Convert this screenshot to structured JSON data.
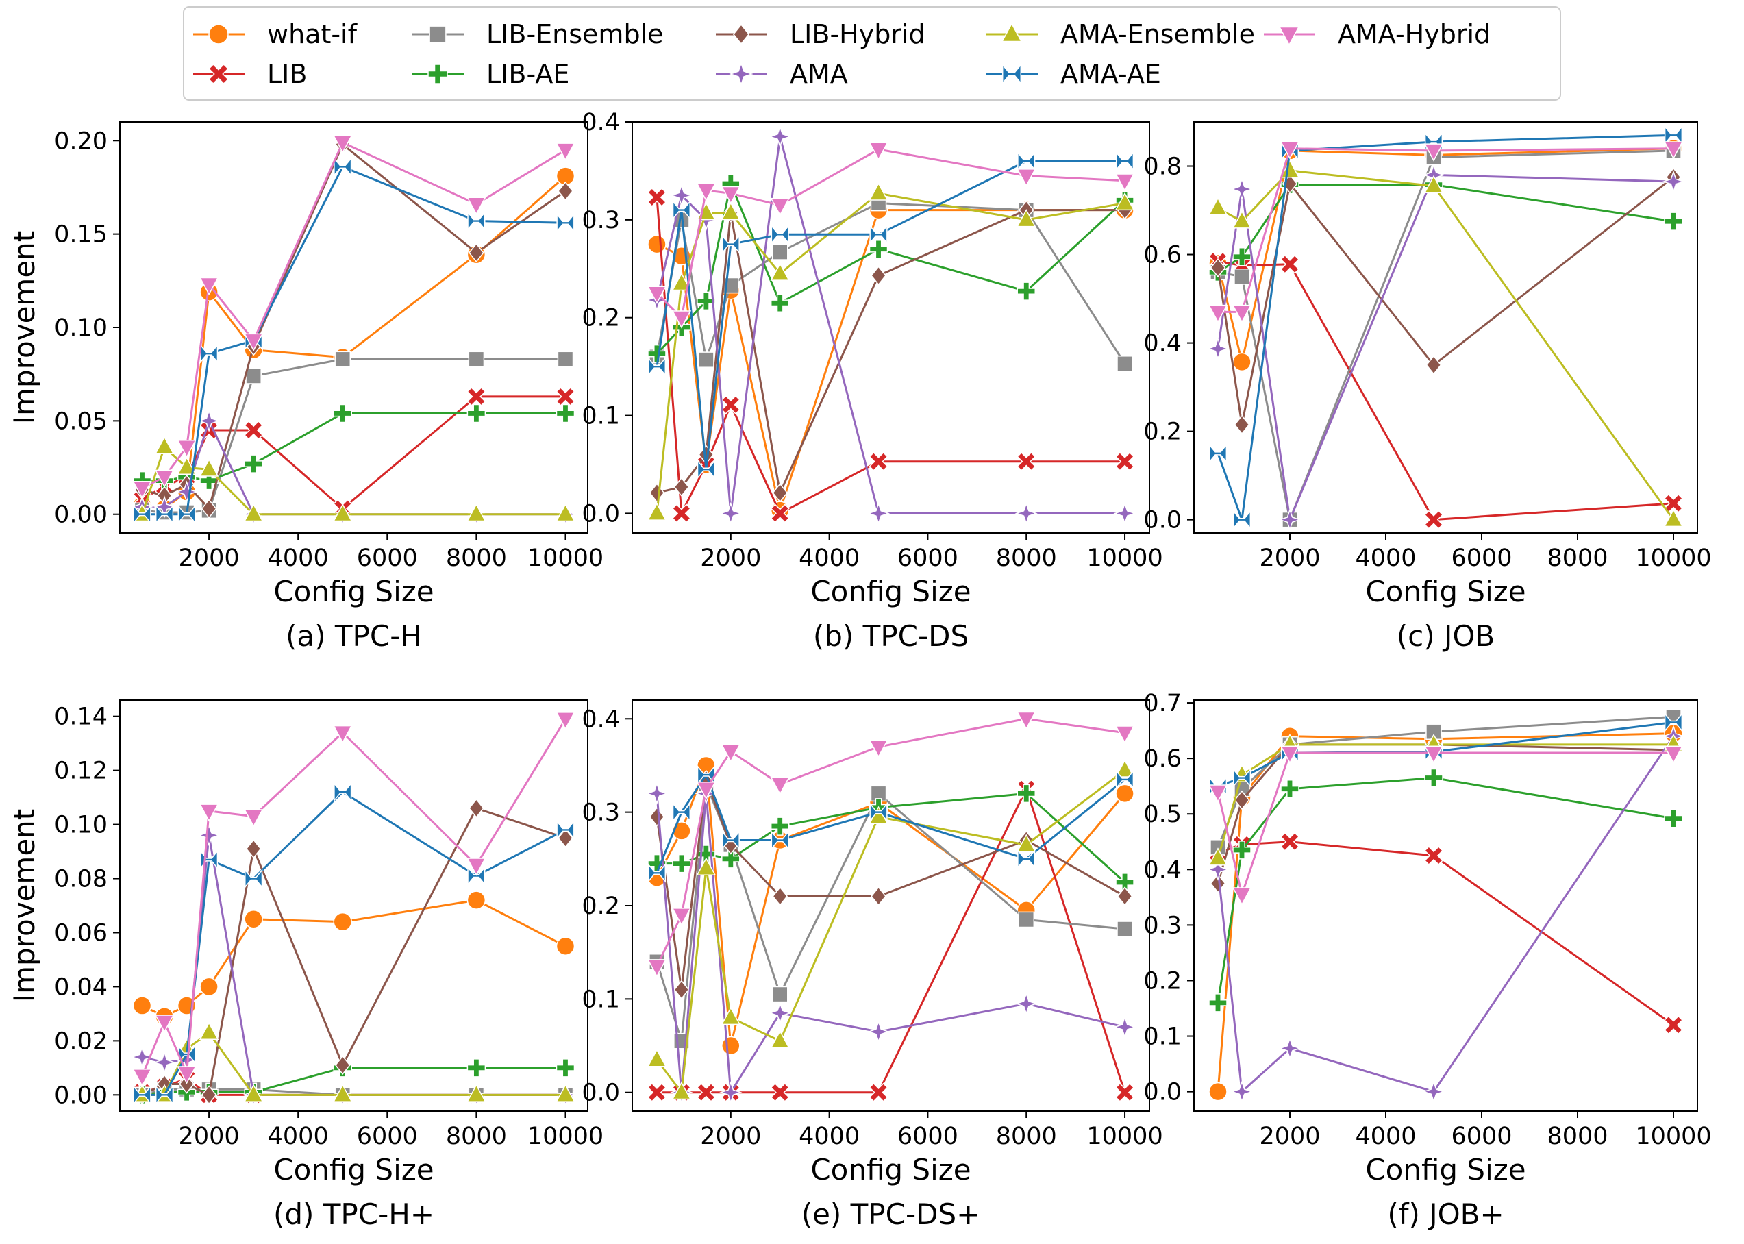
{
  "figure": {
    "ylabel": "Improvement",
    "xlabel": "Config Size"
  },
  "legend": {
    "entries": [
      {
        "name": "what-if",
        "color": "#ff7f0e",
        "marker": "circle"
      },
      {
        "name": "LIB",
        "color": "#d62728",
        "marker": "x"
      },
      {
        "name": "LIB-Ensemble",
        "color": "#8c8c8c",
        "marker": "square"
      },
      {
        "name": "LIB-AE",
        "color": "#2ca02c",
        "marker": "plus"
      },
      {
        "name": "LIB-Hybrid",
        "color": "#8c564b",
        "marker": "diamond"
      },
      {
        "name": "AMA",
        "color": "#9467bd",
        "marker": "star4"
      },
      {
        "name": "AMA-Ensemble",
        "color": "#bcbd22",
        "marker": "triangle-up"
      },
      {
        "name": "AMA-AE",
        "color": "#1f77b4",
        "marker": "bowtie"
      },
      {
        "name": "AMA-Hybrid",
        "color": "#e377c2",
        "marker": "triangle-down"
      }
    ]
  },
  "chart_data": [
    {
      "type": "line",
      "caption": "(a) TPC-H",
      "xlabel": "Config Size",
      "ylabel": "Improvement",
      "xlim": [
        0,
        10500
      ],
      "ylim": [
        -0.01,
        0.21
      ],
      "xticks": [
        2000,
        4000,
        6000,
        8000,
        10000
      ],
      "xtick_labels": [
        "2000",
        "4000",
        "6000",
        "8000",
        "10000"
      ],
      "yticks": [
        0,
        0.05,
        0.1,
        0.15,
        0.2
      ],
      "ytick_labels": [
        "0.00",
        "0.05",
        "0.10",
        "0.15",
        "0.20"
      ],
      "x": [
        500,
        1000,
        1500,
        2000,
        3000,
        5000,
        8000,
        10000
      ],
      "series": [
        {
          "name": "what-if",
          "values": [
            0.005,
            0.003,
            0.012,
            0.119,
            0.088,
            0.084,
            0.139,
            0.181
          ]
        },
        {
          "name": "LIB",
          "values": [
            0.008,
            0.015,
            0.02,
            0.045,
            0.045,
            0.003,
            0.063,
            0.063
          ]
        },
        {
          "name": "LIB-Ensemble",
          "values": [
            0.002,
            0.001,
            0.001,
            0.002,
            0.074,
            0.083,
            0.083,
            0.083
          ]
        },
        {
          "name": "LIB-AE",
          "values": [
            0.018,
            0.018,
            0.02,
            0.018,
            0.027,
            0.054,
            0.054,
            0.054
          ]
        },
        {
          "name": "LIB-Hybrid",
          "values": [
            0.013,
            0.01,
            0.016,
            0.003,
            0.09,
            0.198,
            0.14,
            0.173
          ]
        },
        {
          "name": "AMA",
          "values": [
            0.004,
            0.004,
            0.012,
            0.05,
            0.0,
            0.0,
            0.0,
            0.0
          ]
        },
        {
          "name": "AMA-Ensemble",
          "values": [
            0.0,
            0.036,
            0.025,
            0.024,
            0.0,
            0.0,
            0.0,
            0.0
          ]
        },
        {
          "name": "AMA-AE",
          "values": [
            0.0,
            0.0,
            0.0,
            0.086,
            0.093,
            0.186,
            0.157,
            0.156
          ]
        },
        {
          "name": "AMA-Hybrid",
          "values": [
            0.014,
            0.02,
            0.036,
            0.123,
            0.093,
            0.199,
            0.166,
            0.195
          ]
        }
      ]
    },
    {
      "type": "line",
      "caption": "(b) TPC-DS",
      "xlabel": "Config Size",
      "ylabel": "",
      "xlim": [
        0,
        10500
      ],
      "ylim": [
        -0.02,
        0.4
      ],
      "xticks": [
        2000,
        4000,
        6000,
        8000,
        10000
      ],
      "xtick_labels": [
        "2000",
        "4000",
        "6000",
        "8000",
        "10000"
      ],
      "yticks": [
        0,
        0.1,
        0.2,
        0.3,
        0.4
      ],
      "ytick_labels": [
        "0.0",
        "0.1",
        "0.2",
        "0.3",
        "0.4"
      ],
      "x": [
        500,
        1000,
        1500,
        2000,
        3000,
        5000,
        8000,
        10000
      ],
      "series": [
        {
          "name": "what-if",
          "values": [
            0.275,
            0.263,
            0.05,
            0.228,
            0.003,
            0.31,
            0.31,
            0.31
          ]
        },
        {
          "name": "LIB",
          "values": [
            0.323,
            0.0,
            0.05,
            0.111,
            0.0,
            0.053,
            0.053,
            0.053
          ]
        },
        {
          "name": "LIB-Ensemble",
          "values": [
            0.16,
            0.3,
            0.157,
            0.233,
            0.267,
            0.317,
            0.31,
            0.153
          ]
        },
        {
          "name": "LIB-AE",
          "values": [
            0.163,
            0.19,
            0.217,
            0.337,
            0.215,
            0.27,
            0.227,
            0.32
          ]
        },
        {
          "name": "LIB-Hybrid",
          "values": [
            0.021,
            0.027,
            0.06,
            0.307,
            0.021,
            0.243,
            0.31,
            0.31
          ]
        },
        {
          "name": "AMA",
          "values": [
            0.218,
            0.325,
            0.3,
            0.0,
            0.385,
            0.0,
            0.0,
            0.0
          ]
        },
        {
          "name": "AMA-Ensemble",
          "values": [
            0.0,
            0.235,
            0.307,
            0.307,
            0.245,
            0.327,
            0.3,
            0.317
          ]
        },
        {
          "name": "AMA-AE",
          "values": [
            0.15,
            0.31,
            0.045,
            0.275,
            0.285,
            0.285,
            0.36,
            0.36
          ]
        },
        {
          "name": "AMA-Hybrid",
          "values": [
            0.225,
            0.2,
            0.33,
            0.327,
            0.315,
            0.372,
            0.345,
            0.34
          ]
        }
      ]
    },
    {
      "type": "line",
      "caption": "(c) JOB",
      "xlabel": "Config Size",
      "ylabel": "",
      "xlim": [
        0,
        10500
      ],
      "ylim": [
        -0.03,
        0.9
      ],
      "xticks": [
        2000,
        4000,
        6000,
        8000,
        10000
      ],
      "xtick_labels": [
        "2000",
        "4000",
        "6000",
        "8000",
        "10000"
      ],
      "yticks": [
        0,
        0.2,
        0.4,
        0.6,
        0.8
      ],
      "ytick_labels": [
        "0.0",
        "0.2",
        "0.4",
        "0.6",
        "0.8"
      ],
      "x": [
        500,
        1000,
        2000,
        5000,
        10000
      ],
      "series": [
        {
          "name": "what-if",
          "values": [
            0.58,
            0.357,
            0.835,
            0.825,
            0.84
          ]
        },
        {
          "name": "LIB",
          "values": [
            0.585,
            0.575,
            0.578,
            0.0,
            0.037
          ]
        },
        {
          "name": "LIB-Ensemble",
          "values": [
            0.56,
            0.55,
            0.0,
            0.82,
            0.835
          ]
        },
        {
          "name": "LIB-AE",
          "values": [
            0.56,
            0.595,
            0.758,
            0.758,
            0.675
          ]
        },
        {
          "name": "LIB-Hybrid",
          "values": [
            0.57,
            0.215,
            0.76,
            0.35,
            0.775
          ]
        },
        {
          "name": "AMA",
          "values": [
            0.387,
            0.748,
            0.0,
            0.78,
            0.765
          ]
        },
        {
          "name": "AMA-Ensemble",
          "values": [
            0.705,
            0.675,
            0.79,
            0.755,
            0.0
          ]
        },
        {
          "name": "AMA-AE",
          "values": [
            0.15,
            0.0,
            0.835,
            0.855,
            0.87
          ]
        },
        {
          "name": "AMA-Hybrid",
          "values": [
            0.47,
            0.47,
            0.84,
            0.835,
            0.84
          ]
        }
      ]
    },
    {
      "type": "line",
      "caption": "(d) TPC-H+",
      "xlabel": "Config Size",
      "ylabel": "Improvement",
      "xlim": [
        0,
        10500
      ],
      "ylim": [
        -0.006,
        0.146
      ],
      "xticks": [
        2000,
        4000,
        6000,
        8000,
        10000
      ],
      "xtick_labels": [
        "2000",
        "4000",
        "6000",
        "8000",
        "10000"
      ],
      "yticks": [
        0,
        0.02,
        0.04,
        0.06,
        0.08,
        0.1,
        0.12,
        0.14
      ],
      "ytick_labels": [
        "0.00",
        "0.02",
        "0.04",
        "0.06",
        "0.08",
        "0.10",
        "0.12",
        "0.14"
      ],
      "x": [
        500,
        1000,
        1500,
        2000,
        3000,
        5000,
        8000,
        10000
      ],
      "series": [
        {
          "name": "what-if",
          "values": [
            0.033,
            0.029,
            0.033,
            0.04,
            0.065,
            0.064,
            0.072,
            0.055
          ]
        },
        {
          "name": "LIB",
          "values": [
            0.001,
            0.003,
            0.006,
            0.0,
            0.0,
            0.0,
            0.0,
            0.0
          ]
        },
        {
          "name": "LIB-Ensemble",
          "values": [
            0.0,
            0.002,
            0.002,
            0.002,
            0.002,
            0.0,
            0.0,
            0.0
          ]
        },
        {
          "name": "LIB-AE",
          "values": [
            0.0,
            0.001,
            0.001,
            0.001,
            0.001,
            0.01,
            0.01,
            0.01
          ]
        },
        {
          "name": "LIB-Hybrid",
          "values": [
            0.0,
            0.004,
            0.004,
            0.0,
            0.091,
            0.011,
            0.106,
            0.095
          ]
        },
        {
          "name": "AMA",
          "values": [
            0.014,
            0.012,
            0.013,
            0.096,
            0.0,
            0.0,
            0.0,
            0.0
          ]
        },
        {
          "name": "AMA-Ensemble",
          "values": [
            0.0,
            0.0,
            0.017,
            0.023,
            0.0,
            0.0,
            0.0,
            0.0
          ]
        },
        {
          "name": "AMA-AE",
          "values": [
            0.0,
            0.0,
            0.015,
            0.087,
            0.08,
            0.112,
            0.081,
            0.098
          ]
        },
        {
          "name": "AMA-Hybrid",
          "values": [
            0.007,
            0.027,
            0.008,
            0.105,
            0.103,
            0.134,
            0.085,
            0.139
          ]
        }
      ]
    },
    {
      "type": "line",
      "caption": "(e) TPC-DS+",
      "xlabel": "Config Size",
      "ylabel": "",
      "xlim": [
        0,
        10500
      ],
      "ylim": [
        -0.02,
        0.42
      ],
      "xticks": [
        2000,
        4000,
        6000,
        8000,
        10000
      ],
      "xtick_labels": [
        "2000",
        "4000",
        "6000",
        "8000",
        "10000"
      ],
      "yticks": [
        0,
        0.1,
        0.2,
        0.3,
        0.4
      ],
      "ytick_labels": [
        "0.0",
        "0.1",
        "0.2",
        "0.3",
        "0.4"
      ],
      "x": [
        500,
        1000,
        1500,
        2000,
        3000,
        5000,
        8000,
        10000
      ],
      "series": [
        {
          "name": "what-if",
          "values": [
            0.23,
            0.28,
            0.35,
            0.05,
            0.27,
            0.31,
            0.195,
            0.32
          ]
        },
        {
          "name": "LIB",
          "values": [
            0.0,
            0.0,
            0.0,
            0.0,
            0.0,
            0.0,
            0.325,
            0.0
          ]
        },
        {
          "name": "LIB-Ensemble",
          "values": [
            0.14,
            0.055,
            0.33,
            0.265,
            0.105,
            0.32,
            0.185,
            0.175
          ]
        },
        {
          "name": "LIB-AE",
          "values": [
            0.245,
            0.245,
            0.255,
            0.25,
            0.285,
            0.305,
            0.32,
            0.225
          ]
        },
        {
          "name": "LIB-Hybrid",
          "values": [
            0.295,
            0.11,
            0.335,
            0.265,
            0.21,
            0.21,
            0.27,
            0.21
          ]
        },
        {
          "name": "AMA",
          "values": [
            0.32,
            0.0,
            0.32,
            0.0,
            0.085,
            0.065,
            0.095,
            0.07
          ]
        },
        {
          "name": "AMA-Ensemble",
          "values": [
            0.035,
            0.0,
            0.24,
            0.08,
            0.055,
            0.295,
            0.265,
            0.345
          ]
        },
        {
          "name": "AMA-AE",
          "values": [
            0.235,
            0.3,
            0.34,
            0.27,
            0.27,
            0.3,
            0.25,
            0.335
          ]
        },
        {
          "name": "AMA-Hybrid",
          "values": [
            0.135,
            0.19,
            0.325,
            0.365,
            0.33,
            0.37,
            0.4,
            0.385
          ]
        }
      ]
    },
    {
      "type": "line",
      "caption": "(f) JOB+",
      "xlabel": "Config Size",
      "ylabel": "",
      "xlim": [
        0,
        10500
      ],
      "ylim": [
        -0.035,
        0.705
      ],
      "xticks": [
        2000,
        4000,
        6000,
        8000,
        10000
      ],
      "xtick_labels": [
        "2000",
        "4000",
        "6000",
        "8000",
        "10000"
      ],
      "yticks": [
        0,
        0.1,
        0.2,
        0.3,
        0.4,
        0.5,
        0.6,
        0.7
      ],
      "ytick_labels": [
        "0.0",
        "0.1",
        "0.2",
        "0.3",
        "0.4",
        "0.5",
        "0.6",
        "0.7"
      ],
      "x": [
        500,
        1000,
        2000,
        5000,
        10000
      ],
      "series": [
        {
          "name": "what-if",
          "values": [
            0.0,
            0.53,
            0.64,
            0.635,
            0.645
          ]
        },
        {
          "name": "LIB",
          "values": [
            0.43,
            0.445,
            0.45,
            0.425,
            0.12
          ]
        },
        {
          "name": "LIB-Ensemble",
          "values": [
            0.44,
            0.545,
            0.625,
            0.648,
            0.675
          ]
        },
        {
          "name": "LIB-AE",
          "values": [
            0.16,
            0.435,
            0.545,
            0.565,
            0.492
          ]
        },
        {
          "name": "LIB-Hybrid",
          "values": [
            0.375,
            0.525,
            0.625,
            0.625,
            0.615
          ]
        },
        {
          "name": "AMA",
          "values": [
            0.4,
            0.0,
            0.078,
            0.0,
            0.64
          ]
        },
        {
          "name": "AMA-Ensemble",
          "values": [
            0.42,
            0.57,
            0.625,
            0.625,
            0.625
          ]
        },
        {
          "name": "AMA-AE",
          "values": [
            0.55,
            0.565,
            0.61,
            0.612,
            0.665
          ]
        },
        {
          "name": "AMA-Hybrid",
          "values": [
            0.54,
            0.355,
            0.61,
            0.61,
            0.61
          ]
        }
      ]
    }
  ]
}
